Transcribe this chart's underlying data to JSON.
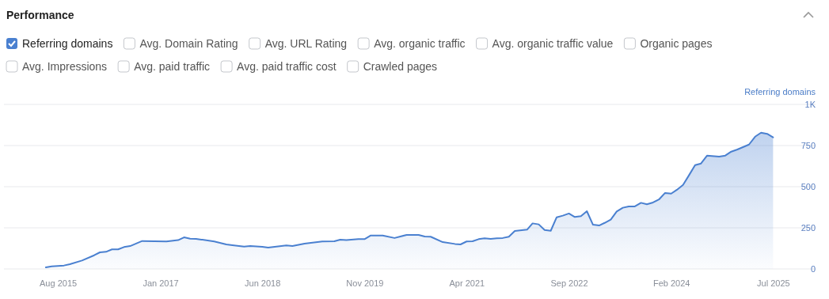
{
  "chart_data": {
    "type": "area",
    "title": "Performance",
    "ylabel": "Referring domains",
    "annotations": [
      "Avg. Domain Rating",
      "Avg. URL Rating",
      "Avg. organic traffic",
      "Avg. organic traffic value",
      "Organic pages",
      "Avg. Impressions",
      "Avg. paid traffic",
      "Avg. paid traffic cost",
      "Crawled pages"
    ],
    "x": [
      "2015-06",
      "2015-07",
      "2015-09",
      "2015-10",
      "2015-12",
      "2016-02",
      "2016-03",
      "2016-04",
      "2016-05",
      "2016-06",
      "2016-07",
      "2016-08",
      "2016-10",
      "2017-02",
      "2017-04",
      "2017-05",
      "2017-06",
      "2017-07",
      "2017-10",
      "2017-12",
      "2018-01",
      "2018-03",
      "2018-04",
      "2018-06",
      "2018-07",
      "2018-10",
      "2018-11",
      "2019-01",
      "2019-04",
      "2019-06",
      "2019-07",
      "2019-08",
      "2019-10",
      "2019-11",
      "2019-12",
      "2020-02",
      "2020-04",
      "2020-06",
      "2020-08",
      "2020-09",
      "2020-10",
      "2020-12",
      "2021-02",
      "2021-03",
      "2021-04",
      "2021-05",
      "2021-06",
      "2021-07",
      "2021-08",
      "2021-09",
      "2021-10",
      "2021-11",
      "2021-12",
      "2022-02",
      "2022-03",
      "2022-04",
      "2022-05",
      "2022-06",
      "2022-07",
      "2022-08",
      "2022-09",
      "2022-10",
      "2022-11",
      "2022-12",
      "2023-01",
      "2023-02",
      "2023-03",
      "2023-04",
      "2023-05",
      "2023-06",
      "2023-07",
      "2023-08",
      "2023-09",
      "2023-10",
      "2023-11",
      "2023-12",
      "2024-01",
      "2024-02",
      "2024-03",
      "2024-04",
      "2024-05",
      "2024-06",
      "2024-07",
      "2024-08",
      "2024-10",
      "2024-11",
      "2024-12",
      "2025-01",
      "2025-03",
      "2025-04",
      "2025-05",
      "2025-06",
      "2025-07"
    ],
    "series": [
      {
        "name": "Referring domains",
        "color": "#4a80d0",
        "values": [
          10,
          16,
          21,
          29,
          51,
          83,
          101,
          104,
          119,
          119,
          133,
          139,
          170,
          167,
          175,
          192,
          184,
          183,
          167,
          149,
          144,
          136,
          139,
          135,
          130,
          143,
          139,
          154,
          167,
          168,
          178,
          175,
          181,
          181,
          203,
          203,
          188,
          207,
          207,
          197,
          196,
          163,
          152,
          149,
          167,
          168,
          181,
          186,
          183,
          186,
          188,
          196,
          231,
          239,
          277,
          271,
          237,
          232,
          314,
          324,
          337,
          316,
          321,
          351,
          269,
          264,
          280,
          300,
          349,
          372,
          380,
          380,
          402,
          393,
          404,
          422,
          462,
          458,
          481,
          511,
          569,
          631,
          641,
          689,
          683,
          689,
          713,
          726,
          756,
          804,
          828,
          821,
          800
        ]
      }
    ],
    "xlim": [
      "2014-11",
      "2026-02"
    ],
    "xticks": [
      {
        "value": "2015-08",
        "label": "Aug 2015"
      },
      {
        "value": "2017-01",
        "label": "Jan 2017"
      },
      {
        "value": "2018-06",
        "label": "Jun 2018"
      },
      {
        "value": "2019-11",
        "label": "Nov 2019"
      },
      {
        "value": "2021-04",
        "label": "Apr 2021"
      },
      {
        "value": "2022-09",
        "label": "Sep 2022"
      },
      {
        "value": "2024-02",
        "label": "Feb 2024"
      },
      {
        "value": "2025-07",
        "label": "Jul 2025"
      }
    ],
    "ylim": [
      0,
      1000
    ],
    "yticks": [
      0,
      250,
      500,
      750,
      {
        "value": 1000,
        "label": "1K"
      }
    ],
    "grid": "y",
    "legend": "top left",
    "marker": "none",
    "line_style": "solid"
  }
}
